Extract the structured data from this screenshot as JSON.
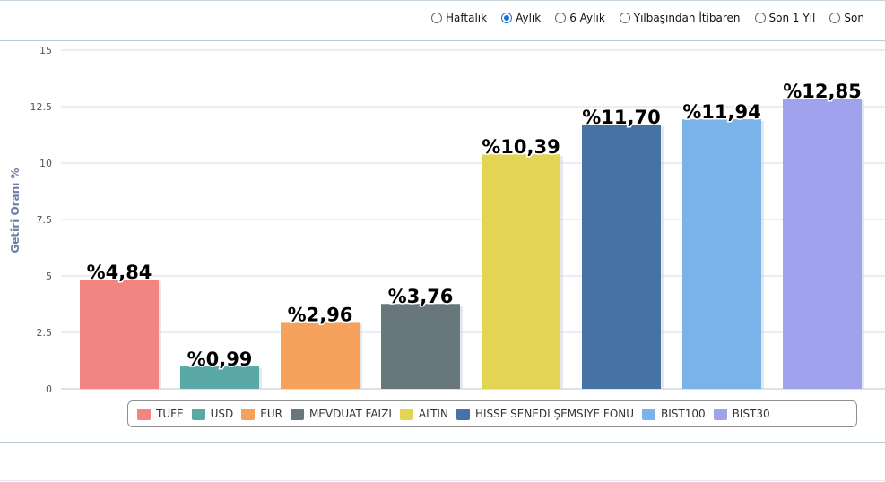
{
  "period_selector": {
    "options": [
      {
        "label": "Haftalık",
        "selected": false
      },
      {
        "label": "Aylık",
        "selected": true
      },
      {
        "label": "6 Aylık",
        "selected": false
      },
      {
        "label": "Yılbaşından İtibaren",
        "selected": false
      },
      {
        "label": "Son 1 Yıl",
        "selected": false
      },
      {
        "label": "Son",
        "selected": false
      }
    ]
  },
  "chart_data": {
    "type": "bar",
    "ylabel": "Getiri Oranı %",
    "ylim": [
      0,
      15
    ],
    "yticks": [
      "0",
      "2.5",
      "5",
      "7.5",
      "10",
      "12.5",
      "15"
    ],
    "grid": true,
    "legend_position": "bottom",
    "categories": [
      "TUFE",
      "USD",
      "EUR",
      "MEVDUAT FAIZI",
      "ALTIN",
      "HISSE SENEDI ŞEMSIYE FONU",
      "BIST100",
      "BIST30"
    ],
    "values": [
      4.84,
      0.99,
      2.96,
      3.76,
      10.39,
      11.7,
      11.94,
      12.85
    ],
    "data_labels": [
      "%4,84",
      "%0,99",
      "%2,96",
      "%3,76",
      "%10,39",
      "%11,70",
      "%11,94",
      "%12,85"
    ],
    "colors": [
      "#f28582",
      "#5ba9a6",
      "#f6a15c",
      "#67777c",
      "#e4d454",
      "#4672a6",
      "#7ab3ea",
      "#a1a2ed"
    ]
  }
}
